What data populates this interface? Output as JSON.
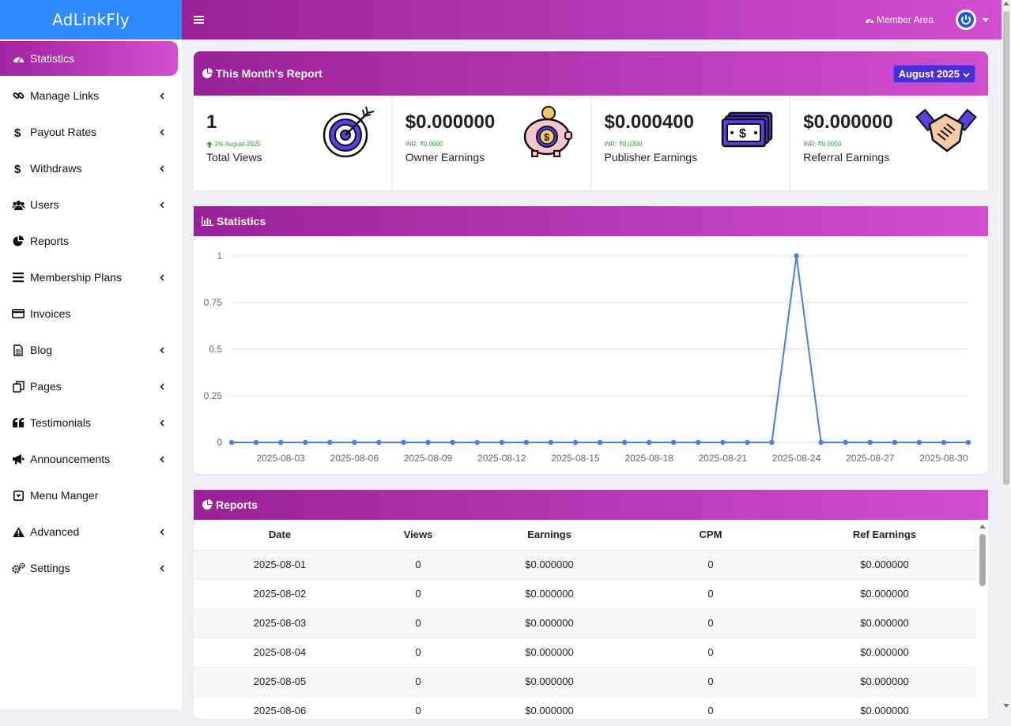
{
  "brand": "AdLinkFly",
  "sidebar": {
    "items": [
      {
        "label": "Statistics",
        "icon": "dashboard-icon",
        "chevron": false,
        "active": true
      },
      {
        "label": "Manage Links",
        "icon": "link-icon",
        "chevron": true
      },
      {
        "label": "Payout Rates",
        "icon": "dollar-icon",
        "chevron": true
      },
      {
        "label": "Withdraws",
        "icon": "dollar-icon",
        "chevron": true
      },
      {
        "label": "Users",
        "icon": "users-icon",
        "chevron": true
      },
      {
        "label": "Reports",
        "icon": "pie-chart-icon",
        "chevron": false
      },
      {
        "label": "Membership Plans",
        "icon": "list-icon",
        "chevron": true
      },
      {
        "label": "Invoices",
        "icon": "credit-card-icon",
        "chevron": false
      },
      {
        "label": "Blog",
        "icon": "document-icon",
        "chevron": true
      },
      {
        "label": "Pages",
        "icon": "copy-icon",
        "chevron": true
      },
      {
        "label": "Testimonials",
        "icon": "quote-icon",
        "chevron": true
      },
      {
        "label": "Announcements",
        "icon": "bullhorn-icon",
        "chevron": true
      },
      {
        "label": "Menu Manger",
        "icon": "caret-square-icon",
        "chevron": false
      },
      {
        "label": "Advanced",
        "icon": "warning-icon",
        "chevron": true
      },
      {
        "label": "Settings",
        "icon": "gears-icon",
        "chevron": true
      }
    ]
  },
  "topbar": {
    "member_area": "Member Area"
  },
  "report": {
    "title": "This Month's Report",
    "month": "August 2025",
    "stats": [
      {
        "value": "1",
        "sub": "1% August-2025",
        "label": "Total Views",
        "icon": "target-icon"
      },
      {
        "value": "$0.000000",
        "sub": "INR: ₹0.0000",
        "label": "Owner Earnings",
        "icon": "piggy-bank-icon"
      },
      {
        "value": "$0.000400",
        "sub": "INR: ₹0.0300",
        "label": "Publisher Earnings",
        "icon": "money-stack-icon"
      },
      {
        "value": "$0.000000",
        "sub": "INR: ₹0.0000",
        "label": "Referral Earnings",
        "icon": "handshake-icon"
      }
    ]
  },
  "statistics": {
    "title": "Statistics"
  },
  "chart_data": {
    "type": "line",
    "x": [
      "2025-08-01",
      "2025-08-02",
      "2025-08-03",
      "2025-08-04",
      "2025-08-05",
      "2025-08-06",
      "2025-08-07",
      "2025-08-08",
      "2025-08-09",
      "2025-08-10",
      "2025-08-11",
      "2025-08-12",
      "2025-08-13",
      "2025-08-14",
      "2025-08-15",
      "2025-08-16",
      "2025-08-17",
      "2025-08-18",
      "2025-08-19",
      "2025-08-20",
      "2025-08-21",
      "2025-08-22",
      "2025-08-23",
      "2025-08-24",
      "2025-08-25",
      "2025-08-26",
      "2025-08-27",
      "2025-08-28",
      "2025-08-29",
      "2025-08-30",
      "2025-08-31"
    ],
    "values": [
      0,
      0,
      0,
      0,
      0,
      0,
      0,
      0,
      0,
      0,
      0,
      0,
      0,
      0,
      0,
      0,
      0,
      0,
      0,
      0,
      0,
      0,
      0,
      1,
      0,
      0,
      0,
      0,
      0,
      0,
      0
    ],
    "x_tick_labels": [
      "2025-08-03",
      "2025-08-06",
      "2025-08-09",
      "2025-08-12",
      "2025-08-15",
      "2025-08-18",
      "2025-08-21",
      "2025-08-24",
      "2025-08-27",
      "2025-08-30"
    ],
    "y_ticks": [
      "1",
      "0.75",
      "0.5",
      "0.25",
      "0"
    ],
    "ylim": [
      0,
      1
    ],
    "grid": true,
    "color": "#4a7de8"
  },
  "reports": {
    "title": "Reports",
    "columns": [
      "Date",
      "Views",
      "Earnings",
      "CPM",
      "Ref Earnings"
    ],
    "rows": [
      [
        "2025-08-01",
        "0",
        "$0.000000",
        "0",
        "$0.000000"
      ],
      [
        "2025-08-02",
        "0",
        "$0.000000",
        "0",
        "$0.000000"
      ],
      [
        "2025-08-03",
        "0",
        "$0.000000",
        "0",
        "$0.000000"
      ],
      [
        "2025-08-04",
        "0",
        "$0.000000",
        "0",
        "$0.000000"
      ],
      [
        "2025-08-05",
        "0",
        "$0.000000",
        "0",
        "$0.000000"
      ],
      [
        "2025-08-06",
        "0",
        "$0.000000",
        "0",
        "$0.000000"
      ]
    ]
  }
}
